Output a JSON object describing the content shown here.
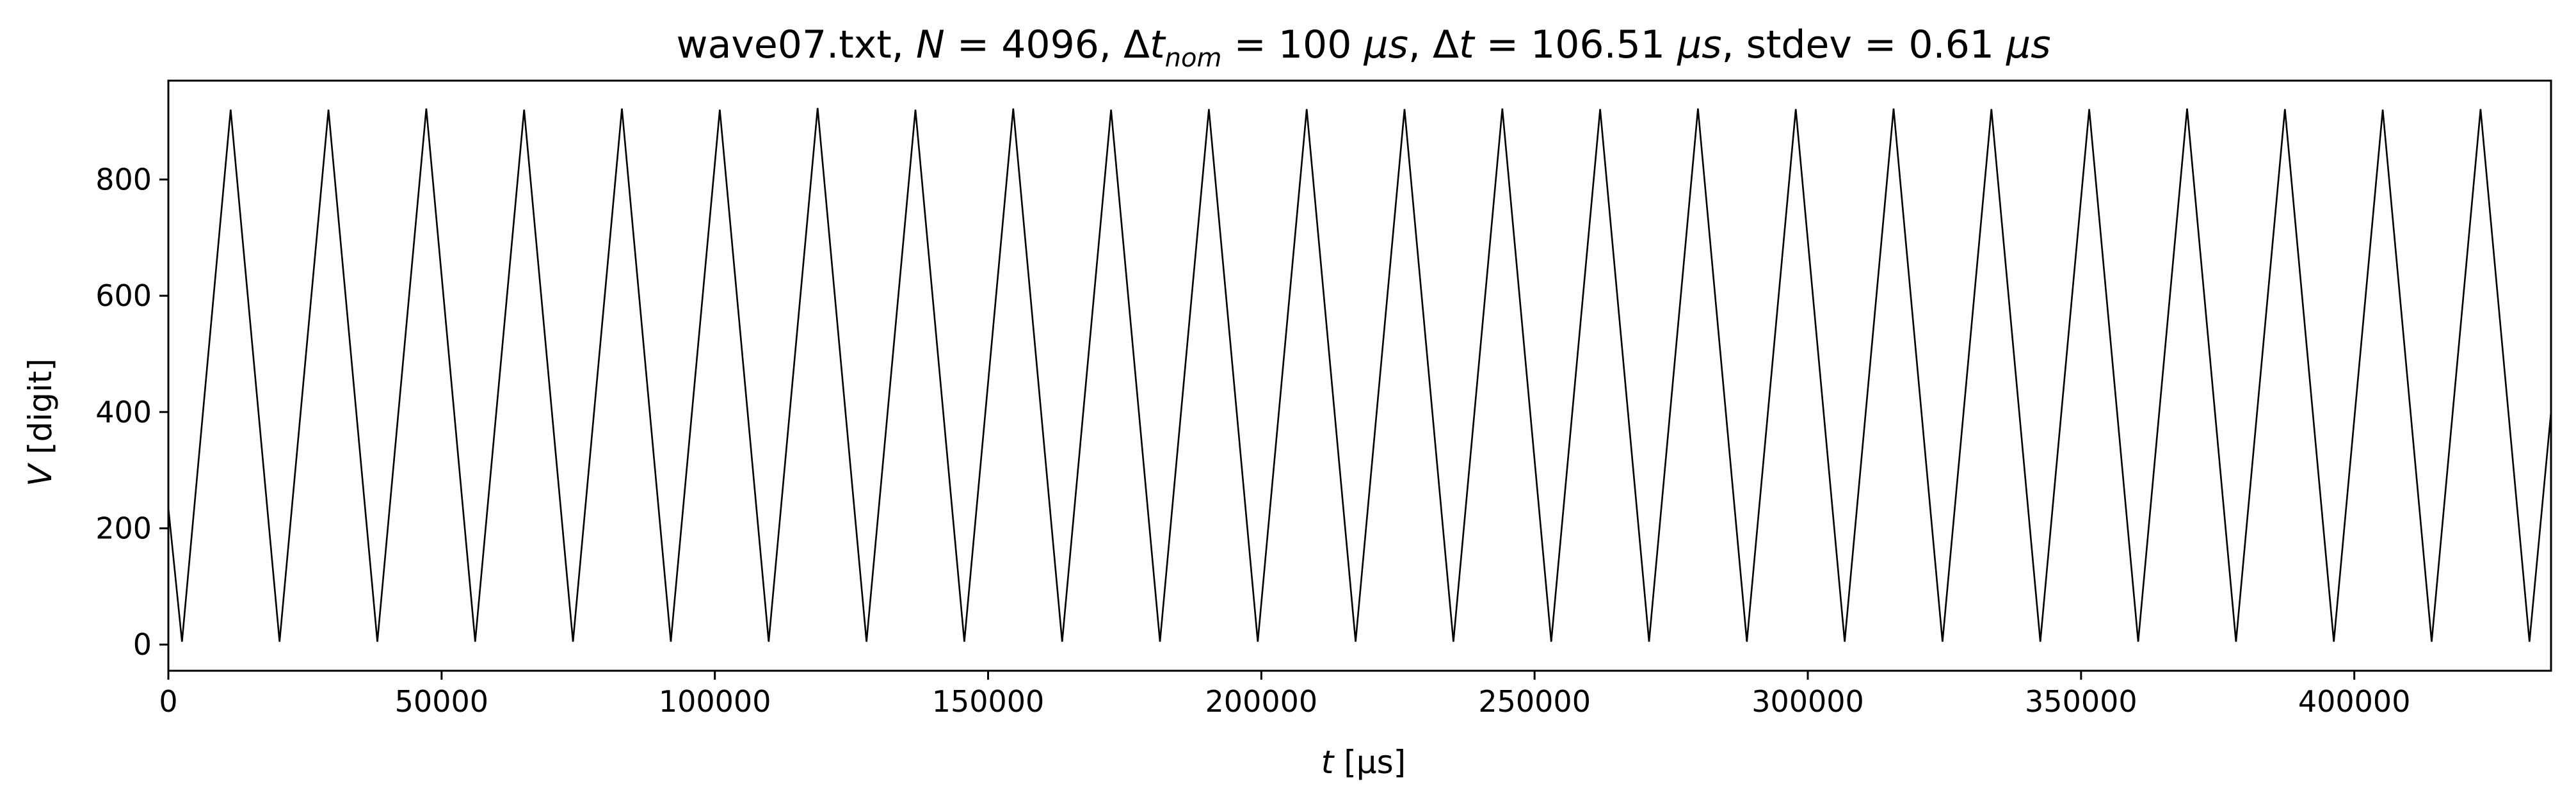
{
  "chart_data": {
    "type": "line",
    "title_parts": {
      "file": "wave07.txt, ",
      "n_sym": "N",
      "n_val": " = 4096, Δ",
      "t_sym": "t",
      "nom_sub": "nom",
      "dtnom_val": " = 100 ",
      "mu_s_1": "μs",
      "sep1": ", Δ",
      "t_sym2": "t",
      "dt_val": " = 106.51 ",
      "mu_s_2": "μs",
      "sep2": ", stdev = 0.61 ",
      "mu_s_3": "μs"
    },
    "xlabel_parts": {
      "sym": "t",
      "unit": " [μs]"
    },
    "ylabel_parts": {
      "sym": "V",
      "unit": " [digit]"
    },
    "xlim": [
      0,
      436000
    ],
    "ylim": [
      -45,
      970
    ],
    "x_ticks": [
      0,
      50000,
      100000,
      150000,
      200000,
      250000,
      300000,
      350000,
      400000
    ],
    "x_tick_labels": [
      "0",
      "50000",
      "100000",
      "150000",
      "200000",
      "250000",
      "300000",
      "350000",
      "400000"
    ],
    "y_ticks": [
      0,
      200,
      400,
      600,
      800
    ],
    "y_tick_labels": [
      "0",
      "200",
      "400",
      "600",
      "800"
    ],
    "grid": false,
    "legend": "none",
    "line_color": "#000000",
    "series": [
      {
        "x": [
          0,
          2500,
          11400,
          20350,
          29300,
          38250,
          47200,
          56150,
          65100,
          74050,
          83000,
          91950,
          100900,
          109850,
          118800,
          127750,
          136700,
          145650,
          154600,
          163550,
          172500,
          181450,
          190400,
          199350,
          208300,
          217250,
          226200,
          235150,
          244100,
          253050,
          262000,
          270950,
          279900,
          288850,
          297800,
          306750,
          315700,
          324650,
          333600,
          342550,
          351500,
          360450,
          369400,
          378350,
          387300,
          396250,
          405200,
          414150,
          423100,
          432050,
          436000
        ],
        "y": [
          235,
          5,
          920,
          5,
          920,
          5,
          922,
          5,
          920,
          5,
          922,
          5,
          920,
          5,
          923,
          5,
          920,
          5,
          922,
          5,
          920,
          5,
          921,
          5,
          921,
          5,
          921,
          5,
          922,
          5,
          921,
          5,
          922,
          5,
          921,
          5,
          922,
          5,
          921,
          5,
          921,
          5,
          922,
          5,
          921,
          5,
          920,
          5,
          921,
          5,
          400
        ]
      }
    ]
  }
}
